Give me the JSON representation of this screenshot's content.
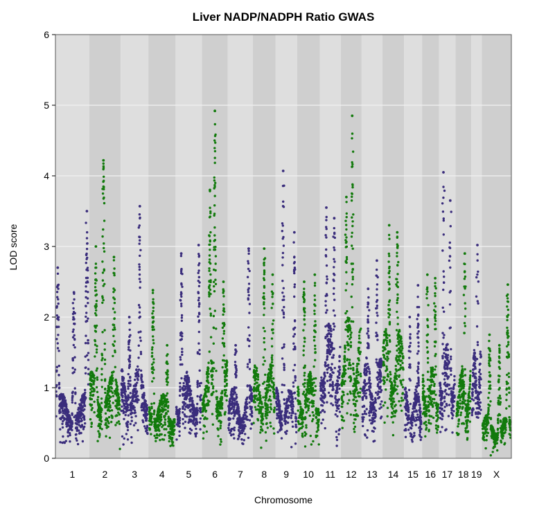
{
  "chart_data": {
    "type": "scatter",
    "title": "Liver NADP/NADPH Ratio GWAS",
    "xlabel": "Chromosome",
    "ylabel": "LOD score",
    "ylim": [
      0,
      6
    ],
    "yticks": [
      "0",
      "1",
      "2",
      "3",
      "4",
      "5",
      "6"
    ],
    "grid": true,
    "colors": {
      "odd_chromosome": "#3a2d7c",
      "even_chromosome": "#127a0c",
      "band_light": "#dedede",
      "band_dark": "#cfcfcf",
      "gridline": "#f2f2f2",
      "frame": "#555555"
    },
    "chromosomes": [
      {
        "label": "1",
        "length": 195,
        "base": 0.9,
        "peaks": [
          [
            0.05,
            2.7
          ],
          [
            0.55,
            2.35
          ],
          [
            0.95,
            3.5
          ]
        ]
      },
      {
        "label": "2",
        "length": 182,
        "base": 1.2,
        "peaks": [
          [
            0.45,
            4.22
          ],
          [
            0.2,
            3.0
          ],
          [
            0.8,
            2.85
          ]
        ]
      },
      {
        "label": "3",
        "length": 160,
        "base": 1.3,
        "peaks": [
          [
            0.7,
            3.57
          ],
          [
            0.3,
            2.0
          ]
        ]
      },
      {
        "label": "4",
        "length": 157,
        "base": 0.9,
        "peaks": [
          [
            0.15,
            2.38
          ],
          [
            0.7,
            1.6
          ]
        ]
      },
      {
        "label": "5",
        "length": 152,
        "base": 1.2,
        "peaks": [
          [
            0.2,
            2.9
          ],
          [
            0.9,
            3.02
          ]
        ]
      },
      {
        "label": "6",
        "length": 150,
        "base": 1.4,
        "peaks": [
          [
            0.5,
            4.92
          ],
          [
            0.3,
            3.8
          ],
          [
            0.85,
            2.5
          ]
        ]
      },
      {
        "label": "7",
        "length": 145,
        "base": 1.0,
        "peaks": [
          [
            0.85,
            2.97
          ],
          [
            0.3,
            1.6
          ]
        ]
      },
      {
        "label": "8",
        "length": 130,
        "base": 1.3,
        "peaks": [
          [
            0.5,
            2.97
          ],
          [
            0.9,
            2.6
          ]
        ]
      },
      {
        "label": "9",
        "length": 125,
        "base": 1.0,
        "peaks": [
          [
            0.35,
            4.07
          ],
          [
            0.9,
            3.2
          ]
        ]
      },
      {
        "label": "10",
        "length": 131,
        "base": 1.2,
        "peaks": [
          [
            0.3,
            2.5
          ],
          [
            0.8,
            2.6
          ]
        ]
      },
      {
        "label": "11",
        "length": 122,
        "base": 1.9,
        "peaks": [
          [
            0.3,
            3.55
          ],
          [
            0.7,
            3.4
          ]
        ]
      },
      {
        "label": "12",
        "length": 120,
        "base": 2.0,
        "peaks": [
          [
            0.55,
            4.85
          ],
          [
            0.25,
            3.7
          ]
        ]
      },
      {
        "label": "13",
        "length": 120,
        "base": 1.4,
        "peaks": [
          [
            0.3,
            2.4
          ],
          [
            0.75,
            2.8
          ]
        ]
      },
      {
        "label": "14",
        "length": 125,
        "base": 1.8,
        "peaks": [
          [
            0.3,
            3.3
          ],
          [
            0.7,
            3.2
          ]
        ]
      },
      {
        "label": "15",
        "length": 104,
        "base": 1.0,
        "peaks": [
          [
            0.8,
            2.45
          ],
          [
            0.3,
            2.0
          ]
        ]
      },
      {
        "label": "16",
        "length": 98,
        "base": 1.3,
        "peaks": [
          [
            0.3,
            2.6
          ],
          [
            0.8,
            2.55
          ]
        ]
      },
      {
        "label": "17",
        "length": 95,
        "base": 1.6,
        "peaks": [
          [
            0.25,
            4.05
          ],
          [
            0.7,
            3.65
          ]
        ]
      },
      {
        "label": "18",
        "length": 91,
        "base": 1.3,
        "peaks": [
          [
            0.6,
            2.9
          ]
        ]
      },
      {
        "label": "19",
        "length": 61,
        "base": 1.5,
        "peaks": [
          [
            0.6,
            3.02
          ]
        ]
      },
      {
        "label": "X",
        "length": 171,
        "base": 0.6,
        "peaks": [
          [
            0.25,
            1.75
          ],
          [
            0.6,
            1.6
          ],
          [
            0.9,
            2.46
          ]
        ]
      }
    ]
  }
}
